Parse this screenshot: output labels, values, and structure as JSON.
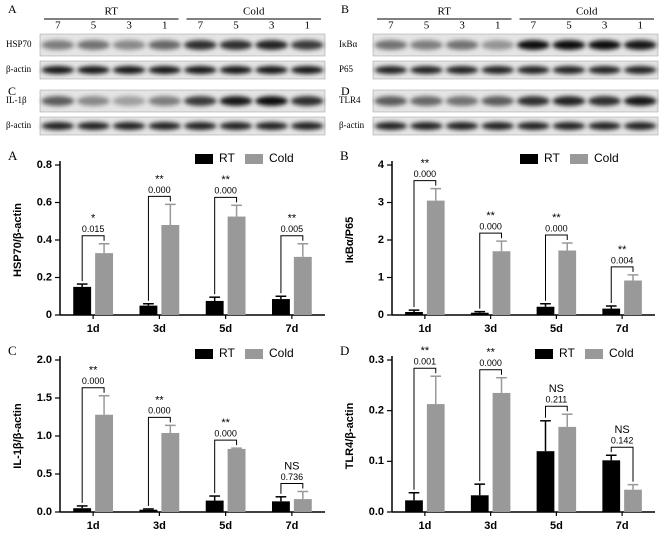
{
  "blots": [
    {
      "letter": "A",
      "groups": [
        "RT",
        "Cold"
      ],
      "lanes": [
        "7",
        "5",
        "3",
        "1",
        "7",
        "5",
        "3",
        "1"
      ],
      "rows": [
        "HSP70",
        "β-actin"
      ]
    },
    {
      "letter": "B",
      "groups": [
        "RT",
        "Cold"
      ],
      "lanes": [
        "7",
        "5",
        "3",
        "1",
        "7",
        "5",
        "3",
        "1"
      ],
      "rows": [
        "IκBα",
        "P65"
      ]
    },
    {
      "letter": "C",
      "rows": [
        "IL-1β",
        "β-actin"
      ]
    },
    {
      "letter": "D",
      "rows": [
        "TLR4",
        "β-actin"
      ]
    }
  ],
  "chart_data": [
    {
      "type": "bar",
      "letter": "A",
      "y_label": "HSP70/β-actin",
      "categories": [
        "1d",
        "3d",
        "5d",
        "7d"
      ],
      "ylim": [
        0,
        0.8
      ],
      "yticks": [
        0,
        0.2,
        0.4,
        0.6,
        0.8
      ],
      "series": [
        {
          "name": "RT",
          "color": "#000000",
          "values": [
            0.15,
            0.05,
            0.075,
            0.085
          ],
          "errors": [
            0.015,
            0.01,
            0.02,
            0.015
          ]
        },
        {
          "name": "Cold",
          "color": "#999999",
          "values": [
            0.33,
            0.48,
            0.525,
            0.31
          ],
          "errors": [
            0.05,
            0.11,
            0.06,
            0.07
          ]
        }
      ],
      "annotations": [
        {
          "label": "*",
          "p": "0.015"
        },
        {
          "label": "**",
          "p": "0.000"
        },
        {
          "label": "**",
          "p": "0.000"
        },
        {
          "label": "**",
          "p": "0.005"
        }
      ]
    },
    {
      "type": "bar",
      "letter": "B",
      "y_label": "IκBα/P65",
      "categories": [
        "1d",
        "3d",
        "5d",
        "7d"
      ],
      "ylim": [
        0,
        4
      ],
      "yticks": [
        0,
        1,
        2,
        3,
        4
      ],
      "series": [
        {
          "name": "RT",
          "color": "#000000",
          "values": [
            0.08,
            0.06,
            0.22,
            0.17
          ],
          "errors": [
            0.05,
            0.03,
            0.08,
            0.07
          ]
        },
        {
          "name": "Cold",
          "color": "#999999",
          "values": [
            3.05,
            1.7,
            1.72,
            0.92
          ],
          "errors": [
            0.32,
            0.27,
            0.2,
            0.15
          ]
        }
      ],
      "annotations": [
        {
          "label": "**",
          "p": "0.000"
        },
        {
          "label": "**",
          "p": "0.000"
        },
        {
          "label": "**",
          "p": "0.000"
        },
        {
          "label": "**",
          "p": "0.004"
        }
      ]
    },
    {
      "type": "bar",
      "letter": "C",
      "y_label": "IL-1β/β-actin",
      "categories": [
        "1d",
        "3d",
        "5d",
        "7d"
      ],
      "ylim": [
        0,
        2
      ],
      "yticks": [
        {
          "value": 0,
          "label": "0.0"
        },
        0.5,
        {
          "value": 1,
          "label": "1.0"
        },
        1.5,
        {
          "value": 2,
          "label": "2.0"
        }
      ],
      "series": [
        {
          "name": "RT",
          "color": "#000000",
          "values": [
            0.05,
            0.03,
            0.15,
            0.14
          ],
          "errors": [
            0.03,
            0.01,
            0.06,
            0.06
          ]
        },
        {
          "name": "Cold",
          "color": "#999999",
          "values": [
            1.28,
            1.04,
            0.83,
            0.17
          ],
          "errors": [
            0.25,
            0.1,
            0.01,
            0.1
          ]
        }
      ],
      "annotations": [
        {
          "label": "**",
          "p": "0.000"
        },
        {
          "label": "**",
          "p": "0.000"
        },
        {
          "label": "**",
          "p": "0.000"
        },
        {
          "label": "NS",
          "p": "0.736"
        }
      ]
    },
    {
      "type": "bar",
      "letter": "D",
      "y_label": "TLR4/β-actin",
      "categories": [
        "1d",
        "3d",
        "5d",
        "7d"
      ],
      "ylim": [
        0,
        0.3
      ],
      "yticks": [
        {
          "value": 0,
          "label": "0.0"
        },
        0.1,
        0.2,
        0.3
      ],
      "series": [
        {
          "name": "RT",
          "color": "#000000",
          "values": [
            0.023,
            0.033,
            0.12,
            0.102
          ],
          "errors": [
            0.015,
            0.022,
            0.06,
            0.01
          ]
        },
        {
          "name": "Cold",
          "color": "#999999",
          "values": [
            0.213,
            0.235,
            0.168,
            0.044
          ],
          "errors": [
            0.055,
            0.03,
            0.025,
            0.01
          ]
        }
      ],
      "annotations": [
        {
          "label": "**",
          "p": "0.001"
        },
        {
          "label": "**",
          "p": "0.000"
        },
        {
          "label": "NS",
          "p": "0.211"
        },
        {
          "label": "NS",
          "p": "0.142"
        }
      ]
    }
  ]
}
